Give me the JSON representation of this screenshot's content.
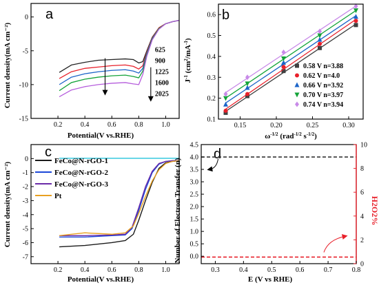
{
  "chart_data": [
    {
      "panel": "a",
      "type": "line",
      "xlabel": "Potential(V vs.RHE)",
      "ylabel": "Current density(mA cm⁻²)",
      "xlim": [
        0.0,
        1.1
      ],
      "ylim": [
        -15,
        2
      ],
      "xticks": [
        0.2,
        0.4,
        0.6,
        0.8,
        1.0
      ],
      "yticks": [
        0,
        -5,
        -10,
        -15
      ],
      "grid": false,
      "legend_title": "",
      "series": [
        {
          "name": "625",
          "color": "#222222",
          "x": [
            0.21,
            0.3,
            0.4,
            0.5,
            0.6,
            0.7,
            0.76,
            0.8,
            0.83,
            0.86,
            0.9,
            0.95,
            1.0,
            1.05,
            1.1
          ],
          "y": [
            -8.2,
            -7.1,
            -6.7,
            -6.4,
            -6.3,
            -6.2,
            -6.3,
            -6.8,
            -6.6,
            -5.0,
            -3.0,
            -1.6,
            -1.0,
            -0.7,
            -0.5
          ]
        },
        {
          "name": "900",
          "color": "#e8202a",
          "x": [
            0.21,
            0.3,
            0.4,
            0.5,
            0.6,
            0.7,
            0.76,
            0.8,
            0.83,
            0.86,
            0.9,
            0.95,
            1.0,
            1.05,
            1.1
          ],
          "y": [
            -9.1,
            -8.1,
            -7.6,
            -7.4,
            -7.2,
            -7.1,
            -7.3,
            -7.7,
            -7.2,
            -5.2,
            -3.1,
            -1.6,
            -1.0,
            -0.7,
            -0.5
          ]
        },
        {
          "name": "1225",
          "color": "#1b64c8",
          "x": [
            0.21,
            0.3,
            0.4,
            0.5,
            0.6,
            0.7,
            0.76,
            0.8,
            0.83,
            0.86,
            0.9,
            0.95,
            1.0,
            1.05,
            1.1
          ],
          "y": [
            -10.0,
            -8.9,
            -8.4,
            -8.1,
            -7.9,
            -7.8,
            -8.0,
            -8.3,
            -7.6,
            -5.4,
            -3.2,
            -1.7,
            -1.0,
            -0.7,
            -0.5
          ]
        },
        {
          "name": "1600",
          "color": "#13a338",
          "x": [
            0.21,
            0.3,
            0.4,
            0.5,
            0.6,
            0.7,
            0.76,
            0.8,
            0.83,
            0.86,
            0.9,
            0.95,
            1.0,
            1.05,
            1.1
          ],
          "y": [
            -10.9,
            -9.7,
            -9.2,
            -8.9,
            -8.7,
            -8.6,
            -8.8,
            -9.0,
            -8.0,
            -5.6,
            -3.3,
            -1.7,
            -1.0,
            -0.7,
            -0.5
          ]
        },
        {
          "name": "2025",
          "color": "#b55cdc",
          "x": [
            0.21,
            0.3,
            0.4,
            0.5,
            0.6,
            0.7,
            0.76,
            0.8,
            0.83,
            0.86,
            0.9,
            0.95,
            1.0,
            1.05,
            1.1
          ],
          "y": [
            -11.8,
            -10.8,
            -10.3,
            -10.0,
            -9.8,
            -9.7,
            -9.9,
            -10.0,
            -8.5,
            -5.8,
            -3.4,
            -1.8,
            -1.0,
            -0.7,
            -0.5
          ]
        }
      ],
      "annotation_arrow": "down"
    },
    {
      "panel": "b",
      "type": "scatter",
      "xlabel": "ω^-1/2 (rad^-1/2 s^-1/2)",
      "ylabel": "J⁻¹ (cm²/mA⁻¹)",
      "xlim": [
        0.12,
        0.32
      ],
      "ylim": [
        0.1,
        0.65
      ],
      "xticks": [
        0.15,
        0.2,
        0.25,
        0.3
      ],
      "yticks": [
        0.1,
        0.2,
        0.3,
        0.4,
        0.5,
        0.6
      ],
      "grid": false,
      "legend_position": "bottom-right",
      "x": [
        0.13,
        0.16,
        0.21,
        0.26,
        0.31
      ],
      "series": [
        {
          "name": "0.58 V  n=3.88",
          "color": "#404040",
          "marker": "square",
          "values": [
            0.13,
            0.21,
            0.33,
            0.44,
            0.55
          ]
        },
        {
          "name": "0.62 V  n=4.0",
          "color": "#e8202a",
          "marker": "circle",
          "values": [
            0.14,
            0.22,
            0.35,
            0.46,
            0.57
          ]
        },
        {
          "name": "0.66 V  n=3.92",
          "color": "#1b64c8",
          "marker": "triangle",
          "values": [
            0.17,
            0.25,
            0.37,
            0.48,
            0.59
          ]
        },
        {
          "name": "0.70 V  n=3.97",
          "color": "#13a338",
          "marker": "triangle-down",
          "values": [
            0.2,
            0.27,
            0.39,
            0.5,
            0.62
          ]
        },
        {
          "name": "0.74 V  n=3.94",
          "color": "#c88ae8",
          "marker": "diamond",
          "values": [
            0.22,
            0.3,
            0.42,
            0.52,
            0.64
          ]
        }
      ]
    },
    {
      "panel": "c",
      "type": "line",
      "xlabel": "Potential(V vs.RHE)",
      "ylabel": "Current density(mA cm⁻²)",
      "xlim": [
        0.0,
        1.1
      ],
      "ylim": [
        -7.5,
        1
      ],
      "xticks": [
        0.2,
        0.4,
        0.6,
        0.8,
        1.0
      ],
      "yticks": [
        0,
        -1,
        -2,
        -3,
        -4,
        -5,
        -6,
        -7
      ],
      "grid": false,
      "legend_position": "top-left",
      "series": [
        {
          "name": "",
          "color": "#23c4dc",
          "x": [
            0.21,
            1.1
          ],
          "y": [
            0.02,
            0.02
          ]
        },
        {
          "name": "FeCo@N-rGO-1",
          "color": "#1a1a1a",
          "x": [
            0.21,
            0.4,
            0.6,
            0.7,
            0.76,
            0.8,
            0.85,
            0.9,
            0.95,
            1.0,
            1.05,
            1.1
          ],
          "y": [
            -6.3,
            -6.2,
            -6.0,
            -5.85,
            -5.4,
            -4.4,
            -3.0,
            -1.7,
            -0.7,
            -0.3,
            -0.2,
            -0.15
          ]
        },
        {
          "name": "FeCo@N-rGO-2",
          "color": "#1b47d8",
          "x": [
            0.21,
            0.4,
            0.6,
            0.7,
            0.75,
            0.8,
            0.85,
            0.9,
            0.95,
            1.0,
            1.05,
            1.1
          ],
          "y": [
            -5.6,
            -5.6,
            -5.5,
            -5.45,
            -5.0,
            -3.7,
            -2.2,
            -1.0,
            -0.4,
            -0.2,
            -0.15,
            -0.15
          ]
        },
        {
          "name": "FeCo@N-rGO-3",
          "color": "#6a2aa8",
          "x": [
            0.21,
            0.4,
            0.6,
            0.7,
            0.75,
            0.8,
            0.85,
            0.9,
            0.95,
            1.0,
            1.05,
            1.1
          ],
          "y": [
            -5.5,
            -5.5,
            -5.45,
            -5.4,
            -4.9,
            -3.5,
            -2.0,
            -0.9,
            -0.35,
            -0.2,
            -0.15,
            -0.15
          ]
        },
        {
          "name": "Pt",
          "color": "#e8a020",
          "x": [
            0.21,
            0.3,
            0.4,
            0.5,
            0.6,
            0.7,
            0.76,
            0.8,
            0.85,
            0.9,
            0.95,
            1.0,
            1.05,
            1.1
          ],
          "y": [
            -5.5,
            -5.4,
            -5.3,
            -5.35,
            -5.4,
            -5.3,
            -4.8,
            -3.9,
            -2.7,
            -1.6,
            -0.8,
            -0.35,
            -0.2,
            -0.15
          ]
        }
      ]
    },
    {
      "panel": "d",
      "type": "line",
      "xlabel": "E (V vs RHE)",
      "ylabel": "Number of Electron Transfer (n)",
      "ylabel_right": "H2O2%",
      "xlim": [
        0.25,
        0.8
      ],
      "ylim": [
        -0.3,
        4.5
      ],
      "ylim_right": [
        0,
        10
      ],
      "xticks": [
        0.3,
        0.4,
        0.5,
        0.6,
        0.7,
        0.8
      ],
      "yticks": [
        0.0,
        0.5,
        1.0,
        1.5,
        2.0,
        2.5,
        3.0,
        3.5,
        4.0,
        4.5
      ],
      "yticks_right": [
        0,
        2,
        4,
        6,
        8,
        10
      ],
      "right_axis_color": "#e8202a",
      "grid": false,
      "series": [
        {
          "name": "",
          "axis": "left",
          "color": "#333333",
          "style": "dashed",
          "x": [
            0.25,
            0.8
          ],
          "y": [
            4.0,
            4.0
          ]
        },
        {
          "name": "",
          "axis": "right",
          "color": "#e8202a",
          "style": "dashed",
          "x": [
            0.25,
            0.8
          ],
          "y": [
            0.55,
            0.55
          ]
        }
      ]
    }
  ]
}
